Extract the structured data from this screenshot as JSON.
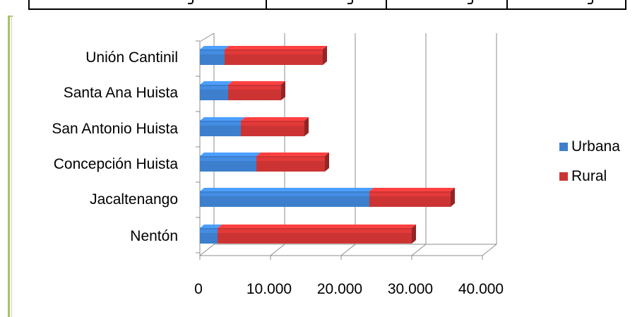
{
  "chart_data": {
    "type": "bar",
    "orientation": "horizontal",
    "stacked": true,
    "style": "3d",
    "categories": [
      "Nentón",
      "Jacaltenango",
      "Concepción Huista",
      "San Antonio Huista",
      "Santa Ana Huista",
      "Unión Cantinil"
    ],
    "series": [
      {
        "name": "Urbana",
        "values": [
          2500,
          24000,
          8000,
          5800,
          4000,
          3500
        ],
        "color": "#3d7fcc"
      },
      {
        "name": "Rural",
        "values": [
          27500,
          11500,
          9700,
          9000,
          7500,
          13900
        ],
        "color": "#cc3434"
      }
    ],
    "xticks": [
      "0",
      "10.000",
      "20.000",
      "30.000",
      "40.000"
    ],
    "xlim": [
      0,
      40000
    ],
    "grid": true,
    "legend_position": "right"
  }
}
